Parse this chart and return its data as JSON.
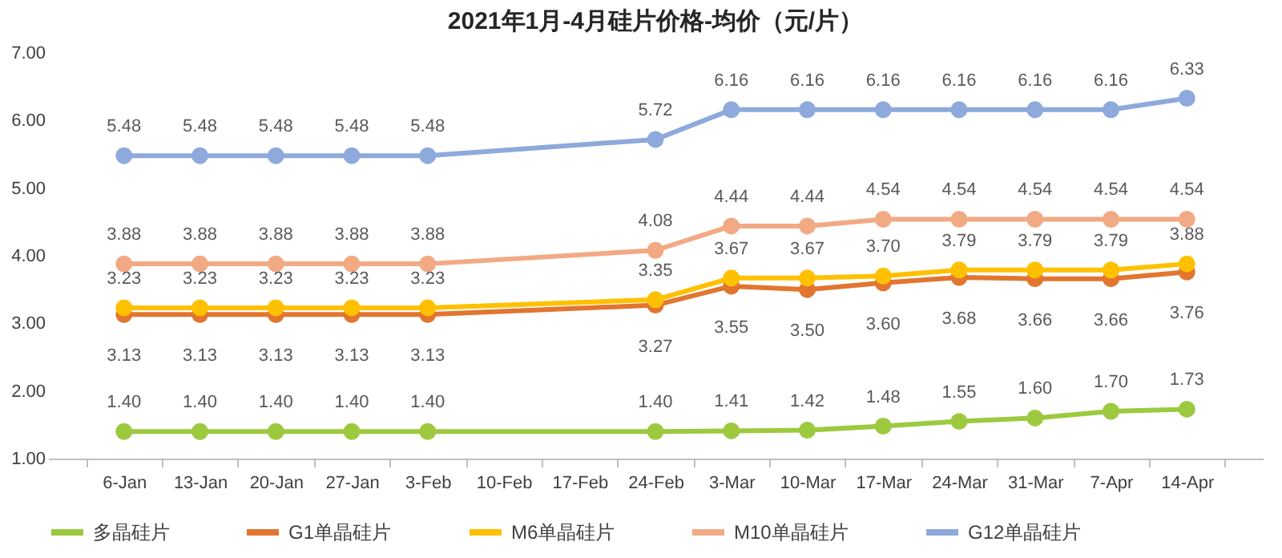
{
  "chart_data": {
    "type": "line",
    "title": "2021年1月-4月硅片价格-均价（元/片）",
    "categories": [
      "6-Jan",
      "13-Jan",
      "20-Jan",
      "27-Jan",
      "3-Feb",
      "10-Feb",
      "17-Feb",
      "24-Feb",
      "3-Mar",
      "10-Mar",
      "17-Mar",
      "24-Mar",
      "31-Mar",
      "7-Apr",
      "14-Apr"
    ],
    "series": [
      {
        "name": "多晶硅片",
        "color": "#9dc93f",
        "values": [
          1.4,
          1.4,
          1.4,
          1.4,
          1.4,
          null,
          null,
          1.4,
          1.41,
          1.42,
          1.48,
          1.55,
          1.6,
          1.7,
          1.73
        ],
        "value_labels": [
          "1.40",
          "1.40",
          "1.40",
          "1.40",
          "1.40",
          null,
          null,
          "1.40",
          "1.41",
          "1.42",
          "1.48",
          "1.55",
          "1.60",
          "1.70",
          "1.73"
        ]
      },
      {
        "name": "G1单晶硅片",
        "color": "#e2752f",
        "values": [
          3.13,
          3.13,
          3.13,
          3.13,
          3.13,
          null,
          null,
          3.27,
          3.55,
          3.5,
          3.6,
          3.68,
          3.66,
          3.66,
          3.76
        ],
        "value_labels": [
          "3.13",
          "3.13",
          "3.13",
          "3.13",
          "3.13",
          null,
          null,
          "3.27",
          "3.55",
          "3.50",
          "3.60",
          "3.68",
          "3.66",
          "3.66",
          "3.76"
        ]
      },
      {
        "name": "M6单晶硅片",
        "color": "#ffc000",
        "values": [
          3.23,
          3.23,
          3.23,
          3.23,
          3.23,
          null,
          null,
          3.35,
          3.67,
          3.67,
          3.7,
          3.79,
          3.79,
          3.79,
          3.88
        ],
        "value_labels": [
          "3.23",
          "3.23",
          "3.23",
          "3.23",
          "3.23",
          null,
          null,
          "3.35",
          "3.67",
          "3.67",
          "3.70",
          "3.79",
          "3.79",
          "3.79",
          "3.88"
        ]
      },
      {
        "name": "M10单晶硅片",
        "color": "#f2aa84",
        "values": [
          3.88,
          3.88,
          3.88,
          3.88,
          3.88,
          null,
          null,
          4.08,
          4.44,
          4.44,
          4.54,
          4.54,
          4.54,
          4.54,
          4.54
        ],
        "value_labels": [
          "3.88",
          "3.88",
          "3.88",
          "3.88",
          "3.88",
          null,
          null,
          "4.08",
          "4.44",
          "4.44",
          "4.54",
          "4.54",
          "4.54",
          "4.54",
          "4.54"
        ]
      },
      {
        "name": "G12单晶硅片",
        "color": "#8ea9db",
        "values": [
          5.48,
          5.48,
          5.48,
          5.48,
          5.48,
          null,
          null,
          5.72,
          6.16,
          6.16,
          6.16,
          6.16,
          6.16,
          6.16,
          6.33
        ],
        "value_labels": [
          "5.48",
          "5.48",
          "5.48",
          "5.48",
          "5.48",
          null,
          null,
          "5.72",
          "6.16",
          "6.16",
          "6.16",
          "6.16",
          "6.16",
          "6.16",
          "6.33"
        ]
      }
    ],
    "ylim": [
      1,
      7
    ],
    "yticks": [
      {
        "value": 1,
        "label": "1.00"
      },
      {
        "value": 2,
        "label": "2.00"
      },
      {
        "value": 3,
        "label": "3.00"
      },
      {
        "value": 4,
        "label": "4.00"
      },
      {
        "value": 5,
        "label": "5.00"
      },
      {
        "value": 6,
        "label": "6.00"
      },
      {
        "value": 7,
        "label": "7.00"
      }
    ],
    "legend": "bottom",
    "marker": "circle"
  }
}
